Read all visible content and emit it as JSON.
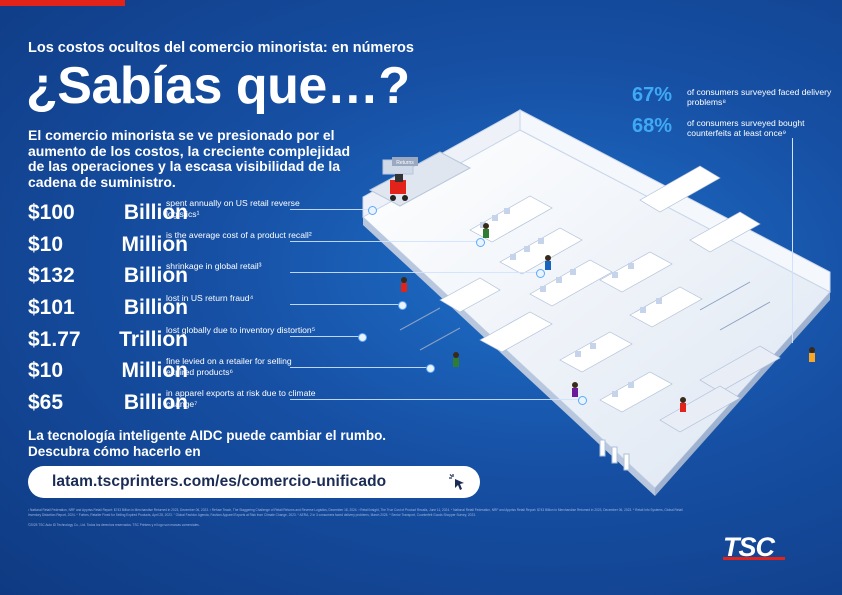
{
  "kicker": "Los costos ocultos del comercio minorista: en números",
  "headline": "¿Sabías que…?",
  "intro": "El comercio minorista se ve presionado por el aumento de los costos, la creciente complejidad de las operaciones y la escasa visibilidad de la cadena de suministro.",
  "stats": [
    {
      "num": "$100",
      "unit": "Billion",
      "desc": "spent annually on US retail reverse logistics¹"
    },
    {
      "num": "$10",
      "unit": "Million",
      "desc": "is the average cost of a product recall²"
    },
    {
      "num": "$132",
      "unit": "Billion",
      "desc": "shrinkage in global retail³"
    },
    {
      "num": "$101",
      "unit": "Billion",
      "desc": "lost in US return fraud⁴"
    },
    {
      "num": "$1.77",
      "unit": "Trillion",
      "desc": "lost globally due to inventory distortion⁵"
    },
    {
      "num": "$10",
      "unit": "Million",
      "desc": "fine levied on a retailer for selling expired products⁶"
    },
    {
      "num": "$65",
      "unit": "Billion",
      "desc": "in apparel exports at risk due to climate change⁷"
    }
  ],
  "right_stats": [
    {
      "pct": "67%",
      "text": "of consumers surveyed faced delivery problems⁸"
    },
    {
      "pct": "68%",
      "text": "of consumers surveyed bought counterfeits at least once⁹"
    }
  ],
  "cta": "La tecnología inteligente AIDC puede cambiar el rumbo. Descubra cómo hacerlo en",
  "url": "latam.tscprinters.com/es/comercio-unificado",
  "footnotes": "¹ National Retail Federation, NRF and Appriss Retail Report: $743 Billion in Merchandise Returned in 2023, December 06, 2023. ² Refuse Teach, The Staggering Challenge of Retail Returns and Reverse Logistics, December 18, 2024. ³ Retail Insight, The True Cost of Product Recalls, June 11, 2024. ⁴ National Retail Federation, NRF and Appriss Retail Report: $743 Billion in Merchandise Returned in 2023, December 06, 2023. ⁵ Retail Info Systems, Global Retail Inventory Distortion Report, 2024. ⁶ Forbes, Retailer Fined for Selling Expired Products, April 28, 2023. ⁷ Global Fashion Agenda, Fashion Apparel Exports at Risk from Climate Change, 2023. ⁸ AERA, 2 in 3 consumers faced delivery problems, March 2025. ⁹ Senior Transport, Counterfeit Goods Shopper Survey, 2023.",
  "copyright": "©2025 TSC Auto ID Technology Co., Ltd. Todos los derechos reservados. TSC Printers y el logo son marcas comerciales.",
  "logo": "TSC",
  "store_sign": "Returns",
  "colors": {
    "background": "#164fa3",
    "accent": "#3fa9f5",
    "brand_red": "#e2231a"
  }
}
